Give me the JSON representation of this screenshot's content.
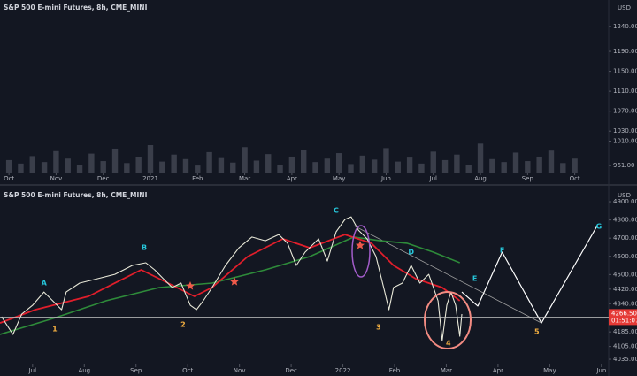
{
  "chart_data": [
    {
      "type": "bar",
      "title": "S&P 500 E-mini Futures, 8h, CME_MINI",
      "unit": "USD",
      "color": "#3a3e4a",
      "x": [
        0,
        0.25,
        0.5,
        0.75,
        1,
        1.25,
        1.5,
        1.75,
        2,
        2.25,
        2.5,
        2.75,
        3,
        3.25,
        3.5,
        3.75,
        4,
        4.25,
        4.5,
        4.75,
        5,
        5.25,
        5.5,
        5.75,
        6,
        6.25,
        6.5,
        6.75,
        7,
        7.25,
        7.5,
        7.75,
        8,
        8.25,
        8.5,
        8.75,
        9,
        9.25,
        9.5,
        9.75,
        10,
        10.25,
        10.5,
        10.75,
        11,
        11.25,
        11.5,
        11.75,
        12
      ],
      "values": [
        972,
        965,
        980,
        968,
        990,
        975,
        962,
        985,
        970,
        995,
        966,
        978,
        1002,
        969,
        983,
        974,
        961,
        988,
        976,
        967,
        998,
        971,
        984,
        963,
        979,
        992,
        968,
        975,
        986,
        964,
        981,
        973,
        996,
        969,
        977,
        965,
        989,
        972,
        983,
        962,
        1005,
        974,
        968,
        987,
        970,
        979,
        991,
        966,
        975
      ],
      "xlim": [
        -0.19,
        12.72
      ],
      "xticks": [
        {
          "value": 0,
          "label": "Oct"
        },
        {
          "value": 1,
          "label": "Nov"
        },
        {
          "value": 2,
          "label": "Dec"
        },
        {
          "value": 3,
          "label": "2021"
        },
        {
          "value": 4,
          "label": "Feb"
        },
        {
          "value": 5,
          "label": "Mar"
        },
        {
          "value": 6,
          "label": "Apr"
        },
        {
          "value": 7,
          "label": "May"
        },
        {
          "value": 8,
          "label": "Jun"
        },
        {
          "value": 9,
          "label": "Jul"
        },
        {
          "value": 10,
          "label": "Aug"
        },
        {
          "value": 11,
          "label": "Sep"
        },
        {
          "value": 12,
          "label": "Oct"
        }
      ],
      "ylim": [
        947,
        1293
      ],
      "yticks": [
        {
          "value": 1240,
          "label": "1240.00"
        },
        {
          "value": 1190,
          "label": "1190.00"
        },
        {
          "value": 1150,
          "label": "1150.00"
        },
        {
          "value": 1110,
          "label": "1110.00"
        },
        {
          "value": 1070,
          "label": "1070.00"
        },
        {
          "value": 1030,
          "label": "1030.00"
        },
        {
          "value": 1010,
          "label": "1010.00"
        },
        {
          "value": 961,
          "label": "961.00"
        }
      ]
    },
    {
      "type": "line",
      "title": "S&P 500 E-mini Futures, 8h, CME_MINI",
      "unit": "USD",
      "xlim": [
        -0.63,
        11.14
      ],
      "xticks": [
        {
          "value": 0,
          "label": "Jul"
        },
        {
          "value": 1,
          "label": "Aug"
        },
        {
          "value": 2,
          "label": "Sep"
        },
        {
          "value": 3,
          "label": "Oct"
        },
        {
          "value": 4,
          "label": "Nov"
        },
        {
          "value": 5,
          "label": "Dec"
        },
        {
          "value": 6,
          "label": "2022"
        },
        {
          "value": 7,
          "label": "Feb"
        },
        {
          "value": 8,
          "label": "Mar"
        },
        {
          "value": 9,
          "label": "Apr"
        },
        {
          "value": 10,
          "label": "May"
        },
        {
          "value": 11,
          "label": "Jun"
        }
      ],
      "ylim": [
        4006,
        4973
      ],
      "yticks": [
        {
          "value": 4900,
          "label": "4900.00"
        },
        {
          "value": 4800,
          "label": "4800.00"
        },
        {
          "value": 4700,
          "label": "4700.00"
        },
        {
          "value": 4600,
          "label": "4600.00"
        },
        {
          "value": 4500,
          "label": "4500.00"
        },
        {
          "value": 4420,
          "label": "4420.00"
        },
        {
          "value": 4340,
          "label": "4340.00"
        },
        {
          "value": 4185,
          "label": "4185.00"
        },
        {
          "value": 4105,
          "label": "4105.00"
        },
        {
          "value": 4035,
          "label": "4035.00"
        }
      ],
      "price_label": {
        "value": 4266.5,
        "label": "4266.50"
      },
      "countdown": "01:51:07",
      "series": [
        {
          "color": "#9e9e9e",
          "width": 0.8,
          "x": [
            6.21,
            9.84
          ],
          "values": [
            4769,
            4234
          ]
        },
        {
          "color": "#2e8b3a",
          "width": 1.6,
          "x": [
            -0.63,
            0.39,
            1.42,
            2.45,
            3.47,
            4.5,
            5.36,
            6.21,
            6.72,
            7.24,
            7.75,
            8.26
          ],
          "values": [
            4171,
            4258,
            4356,
            4429,
            4453,
            4526,
            4599,
            4706,
            4686,
            4672,
            4623,
            4565
          ]
        },
        {
          "color": "#e01e2b",
          "width": 1.8,
          "x": [
            -0.63,
            0.05,
            1.08,
            2.1,
            2.62,
            3.13,
            3.47,
            4.16,
            4.84,
            5.36,
            6.04,
            6.55,
            6.98,
            7.41,
            7.92,
            8.26
          ],
          "values": [
            4234,
            4307,
            4380,
            4526,
            4453,
            4380,
            4429,
            4599,
            4696,
            4647,
            4720,
            4672,
            4550,
            4477,
            4429,
            4356
          ]
        },
        {
          "color": "#e8e8d8",
          "width": 1.1,
          "x": [
            -0.6,
            -0.38,
            -0.21,
            0,
            0.22,
            0.39,
            0.56,
            0.65,
            0.91,
            1.25,
            1.59,
            1.93,
            2.19,
            2.36,
            2.53,
            2.7,
            2.87,
            3.05,
            3.17,
            3.3,
            3.47,
            3.73,
            3.99,
            4.24,
            4.5,
            4.76,
            4.93,
            5.1,
            5.27,
            5.53,
            5.7,
            5.87,
            6.04,
            6.16,
            6.3,
            6.47,
            6.64,
            6.81,
            6.89,
            6.98,
            7.15,
            7.32,
            7.49,
            7.66,
            7.84,
            7.92,
            8.01,
            8.09,
            8.18,
            8.26,
            8.3
          ],
          "values": [
            4268,
            4171,
            4283,
            4331,
            4404,
            4356,
            4307,
            4404,
            4453,
            4477,
            4501,
            4550,
            4565,
            4526,
            4477,
            4429,
            4453,
            4331,
            4307,
            4356,
            4429,
            4550,
            4647,
            4706,
            4686,
            4720,
            4672,
            4550,
            4623,
            4696,
            4574,
            4735,
            4803,
            4817,
            4744,
            4696,
            4599,
            4404,
            4307,
            4429,
            4453,
            4550,
            4453,
            4501,
            4356,
            4137,
            4331,
            4404,
            4331,
            4161,
            4283
          ]
        },
        {
          "color": "#ffffff",
          "width": 1.2,
          "x": [
            8.3,
            8.61,
            9.08,
            9.84,
            10.92
          ],
          "values": [
            4404,
            4327,
            4623,
            4234,
            4769
          ]
        }
      ],
      "annotations": [
        {
          "text": "A",
          "x": 0.22,
          "y": 4453,
          "color": "#26c6da"
        },
        {
          "text": "B",
          "x": 2.16,
          "y": 4647,
          "color": "#26c6da"
        },
        {
          "text": "C",
          "x": 5.87,
          "y": 4851,
          "color": "#26c6da"
        },
        {
          "text": "D",
          "x": 7.32,
          "y": 4623,
          "color": "#26c6da"
        },
        {
          "text": "E",
          "x": 8.55,
          "y": 4477,
          "color": "#26c6da"
        },
        {
          "text": "F",
          "x": 9.08,
          "y": 4633,
          "color": "#26c6da"
        },
        {
          "text": "G",
          "x": 10.95,
          "y": 4764,
          "color": "#26c6da"
        },
        {
          "text": "1",
          "x": 0.43,
          "y": 4200,
          "color": "#f5b041"
        },
        {
          "text": "2",
          "x": 2.91,
          "y": 4224,
          "color": "#f5b041"
        },
        {
          "text": "3",
          "x": 6.69,
          "y": 4210,
          "color": "#f5b041"
        },
        {
          "text": "4",
          "x": 8.04,
          "y": 4122,
          "color": "#f5b041"
        },
        {
          "text": "5",
          "x": 9.75,
          "y": 4185,
          "color": "#f5b041"
        }
      ]
    }
  ]
}
